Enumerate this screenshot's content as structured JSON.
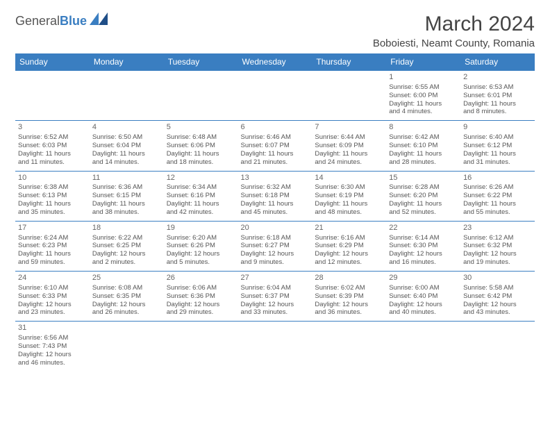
{
  "logo": {
    "word1": "General",
    "word2": "Blue"
  },
  "header": {
    "month_title": "March 2024",
    "location": "Boboiesti, Neamt County, Romania"
  },
  "colors": {
    "header_bg": "#3a7ec1",
    "header_text": "#ffffff",
    "cell_border": "#3a7ec1",
    "body_text": "#555555",
    "logo_gray": "#555555",
    "logo_blue": "#3a7ec1"
  },
  "weekdays": [
    "Sunday",
    "Monday",
    "Tuesday",
    "Wednesday",
    "Thursday",
    "Friday",
    "Saturday"
  ],
  "days": {
    "1": {
      "sunrise": "Sunrise: 6:55 AM",
      "sunset": "Sunset: 6:00 PM",
      "day1": "Daylight: 11 hours",
      "day2": "and 4 minutes."
    },
    "2": {
      "sunrise": "Sunrise: 6:53 AM",
      "sunset": "Sunset: 6:01 PM",
      "day1": "Daylight: 11 hours",
      "day2": "and 8 minutes."
    },
    "3": {
      "sunrise": "Sunrise: 6:52 AM",
      "sunset": "Sunset: 6:03 PM",
      "day1": "Daylight: 11 hours",
      "day2": "and 11 minutes."
    },
    "4": {
      "sunrise": "Sunrise: 6:50 AM",
      "sunset": "Sunset: 6:04 PM",
      "day1": "Daylight: 11 hours",
      "day2": "and 14 minutes."
    },
    "5": {
      "sunrise": "Sunrise: 6:48 AM",
      "sunset": "Sunset: 6:06 PM",
      "day1": "Daylight: 11 hours",
      "day2": "and 18 minutes."
    },
    "6": {
      "sunrise": "Sunrise: 6:46 AM",
      "sunset": "Sunset: 6:07 PM",
      "day1": "Daylight: 11 hours",
      "day2": "and 21 minutes."
    },
    "7": {
      "sunrise": "Sunrise: 6:44 AM",
      "sunset": "Sunset: 6:09 PM",
      "day1": "Daylight: 11 hours",
      "day2": "and 24 minutes."
    },
    "8": {
      "sunrise": "Sunrise: 6:42 AM",
      "sunset": "Sunset: 6:10 PM",
      "day1": "Daylight: 11 hours",
      "day2": "and 28 minutes."
    },
    "9": {
      "sunrise": "Sunrise: 6:40 AM",
      "sunset": "Sunset: 6:12 PM",
      "day1": "Daylight: 11 hours",
      "day2": "and 31 minutes."
    },
    "10": {
      "sunrise": "Sunrise: 6:38 AM",
      "sunset": "Sunset: 6:13 PM",
      "day1": "Daylight: 11 hours",
      "day2": "and 35 minutes."
    },
    "11": {
      "sunrise": "Sunrise: 6:36 AM",
      "sunset": "Sunset: 6:15 PM",
      "day1": "Daylight: 11 hours",
      "day2": "and 38 minutes."
    },
    "12": {
      "sunrise": "Sunrise: 6:34 AM",
      "sunset": "Sunset: 6:16 PM",
      "day1": "Daylight: 11 hours",
      "day2": "and 42 minutes."
    },
    "13": {
      "sunrise": "Sunrise: 6:32 AM",
      "sunset": "Sunset: 6:18 PM",
      "day1": "Daylight: 11 hours",
      "day2": "and 45 minutes."
    },
    "14": {
      "sunrise": "Sunrise: 6:30 AM",
      "sunset": "Sunset: 6:19 PM",
      "day1": "Daylight: 11 hours",
      "day2": "and 48 minutes."
    },
    "15": {
      "sunrise": "Sunrise: 6:28 AM",
      "sunset": "Sunset: 6:20 PM",
      "day1": "Daylight: 11 hours",
      "day2": "and 52 minutes."
    },
    "16": {
      "sunrise": "Sunrise: 6:26 AM",
      "sunset": "Sunset: 6:22 PM",
      "day1": "Daylight: 11 hours",
      "day2": "and 55 minutes."
    },
    "17": {
      "sunrise": "Sunrise: 6:24 AM",
      "sunset": "Sunset: 6:23 PM",
      "day1": "Daylight: 11 hours",
      "day2": "and 59 minutes."
    },
    "18": {
      "sunrise": "Sunrise: 6:22 AM",
      "sunset": "Sunset: 6:25 PM",
      "day1": "Daylight: 12 hours",
      "day2": "and 2 minutes."
    },
    "19": {
      "sunrise": "Sunrise: 6:20 AM",
      "sunset": "Sunset: 6:26 PM",
      "day1": "Daylight: 12 hours",
      "day2": "and 5 minutes."
    },
    "20": {
      "sunrise": "Sunrise: 6:18 AM",
      "sunset": "Sunset: 6:27 PM",
      "day1": "Daylight: 12 hours",
      "day2": "and 9 minutes."
    },
    "21": {
      "sunrise": "Sunrise: 6:16 AM",
      "sunset": "Sunset: 6:29 PM",
      "day1": "Daylight: 12 hours",
      "day2": "and 12 minutes."
    },
    "22": {
      "sunrise": "Sunrise: 6:14 AM",
      "sunset": "Sunset: 6:30 PM",
      "day1": "Daylight: 12 hours",
      "day2": "and 16 minutes."
    },
    "23": {
      "sunrise": "Sunrise: 6:12 AM",
      "sunset": "Sunset: 6:32 PM",
      "day1": "Daylight: 12 hours",
      "day2": "and 19 minutes."
    },
    "24": {
      "sunrise": "Sunrise: 6:10 AM",
      "sunset": "Sunset: 6:33 PM",
      "day1": "Daylight: 12 hours",
      "day2": "and 23 minutes."
    },
    "25": {
      "sunrise": "Sunrise: 6:08 AM",
      "sunset": "Sunset: 6:35 PM",
      "day1": "Daylight: 12 hours",
      "day2": "and 26 minutes."
    },
    "26": {
      "sunrise": "Sunrise: 6:06 AM",
      "sunset": "Sunset: 6:36 PM",
      "day1": "Daylight: 12 hours",
      "day2": "and 29 minutes."
    },
    "27": {
      "sunrise": "Sunrise: 6:04 AM",
      "sunset": "Sunset: 6:37 PM",
      "day1": "Daylight: 12 hours",
      "day2": "and 33 minutes."
    },
    "28": {
      "sunrise": "Sunrise: 6:02 AM",
      "sunset": "Sunset: 6:39 PM",
      "day1": "Daylight: 12 hours",
      "day2": "and 36 minutes."
    },
    "29": {
      "sunrise": "Sunrise: 6:00 AM",
      "sunset": "Sunset: 6:40 PM",
      "day1": "Daylight: 12 hours",
      "day2": "and 40 minutes."
    },
    "30": {
      "sunrise": "Sunrise: 5:58 AM",
      "sunset": "Sunset: 6:42 PM",
      "day1": "Daylight: 12 hours",
      "day2": "and 43 minutes."
    },
    "31": {
      "sunrise": "Sunrise: 6:56 AM",
      "sunset": "Sunset: 7:43 PM",
      "day1": "Daylight: 12 hours",
      "day2": "and 46 minutes."
    }
  },
  "layout": {
    "weeks": [
      [
        null,
        null,
        null,
        null,
        null,
        "1",
        "2"
      ],
      [
        "3",
        "4",
        "5",
        "6",
        "7",
        "8",
        "9"
      ],
      [
        "10",
        "11",
        "12",
        "13",
        "14",
        "15",
        "16"
      ],
      [
        "17",
        "18",
        "19",
        "20",
        "21",
        "22",
        "23"
      ],
      [
        "24",
        "25",
        "26",
        "27",
        "28",
        "29",
        "30"
      ],
      [
        "31",
        null,
        null,
        null,
        null,
        null,
        null
      ]
    ]
  }
}
